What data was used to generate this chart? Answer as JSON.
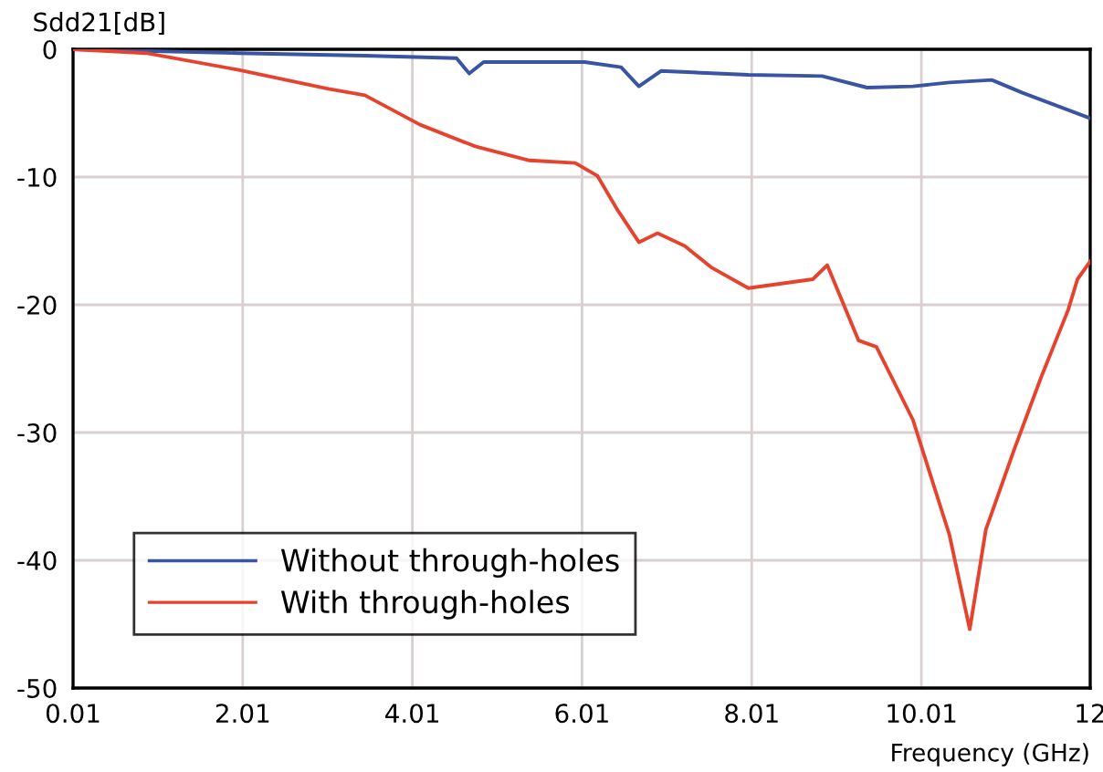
{
  "chart_data": {
    "type": "line",
    "xlabel": "Frequency (GHz)",
    "ylabel": "Sdd21[dB]",
    "xlim": [
      0.01,
      12
    ],
    "ylim": [
      -50,
      0
    ],
    "xticks": [
      0.01,
      2.01,
      4.01,
      6.01,
      8.01,
      10.01,
      12
    ],
    "yticks": [
      -50,
      -40,
      -30,
      -20,
      -10,
      0
    ],
    "grid": true,
    "legend": "bottom left",
    "line_style": "solid",
    "marker": "none",
    "series": [
      {
        "name": "Without through-holes",
        "color": "#3a54a4",
        "x": [
          0.01,
          1.95,
          3.45,
          4.53,
          4.68,
          4.85,
          6.04,
          6.47,
          6.68,
          6.94,
          7.97,
          8.84,
          9.37,
          9.91,
          10.34,
          10.84,
          11.2,
          12
        ],
        "values": [
          0,
          -0.3,
          -0.5,
          -0.7,
          -1.9,
          -1.0,
          -1.0,
          -1.4,
          -2.9,
          -1.7,
          -2.0,
          -2.1,
          -3.0,
          -2.9,
          -2.6,
          -2.4,
          -3.4,
          -5.4
        ]
      },
      {
        "name": "With through-holes",
        "color": "#e5432d",
        "x": [
          0.01,
          0.87,
          1.95,
          3.02,
          3.45,
          4.1,
          4.75,
          5.39,
          5.93,
          6.19,
          6.43,
          6.68,
          6.9,
          7.22,
          7.54,
          7.97,
          8.73,
          8.9,
          9.27,
          9.48,
          9.91,
          10.34,
          10.58,
          10.77,
          11.1,
          11.42,
          11.74,
          11.85,
          12
        ],
        "values": [
          0,
          -0.3,
          -1.6,
          -3.1,
          -3.6,
          -5.9,
          -7.6,
          -8.7,
          -8.9,
          -9.9,
          -12.6,
          -15.1,
          -14.4,
          -15.4,
          -17.1,
          -18.7,
          -18,
          -16.9,
          -22.8,
          -23.3,
          -29,
          -38,
          -45.4,
          -37.6,
          -31.4,
          -25.7,
          -20.4,
          -18,
          -16.6
        ]
      }
    ]
  }
}
